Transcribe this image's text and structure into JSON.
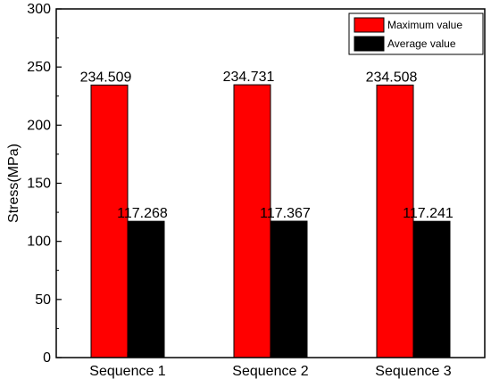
{
  "chart_data": {
    "type": "bar",
    "categories": [
      "Sequence 1",
      "Sequence 2",
      "Sequence 3"
    ],
    "series": [
      {
        "name": "Maximum value",
        "values": [
          234.509,
          234.731,
          234.508
        ],
        "color": "#ff0000"
      },
      {
        "name": "Average value",
        "values": [
          117.268,
          117.367,
          117.241
        ],
        "color": "#000000"
      }
    ],
    "data_labels": [
      [
        "234.509",
        "234.731",
        "234.508"
      ],
      [
        "117.268",
        "117.367",
        "117.241"
      ]
    ],
    "xlabel": "",
    "ylabel": "Stress(MPa)",
    "ylim": [
      0,
      300
    ],
    "yticks": [
      0,
      50,
      100,
      150,
      200,
      250,
      300
    ],
    "grid": false,
    "legend_position": "top-right"
  }
}
